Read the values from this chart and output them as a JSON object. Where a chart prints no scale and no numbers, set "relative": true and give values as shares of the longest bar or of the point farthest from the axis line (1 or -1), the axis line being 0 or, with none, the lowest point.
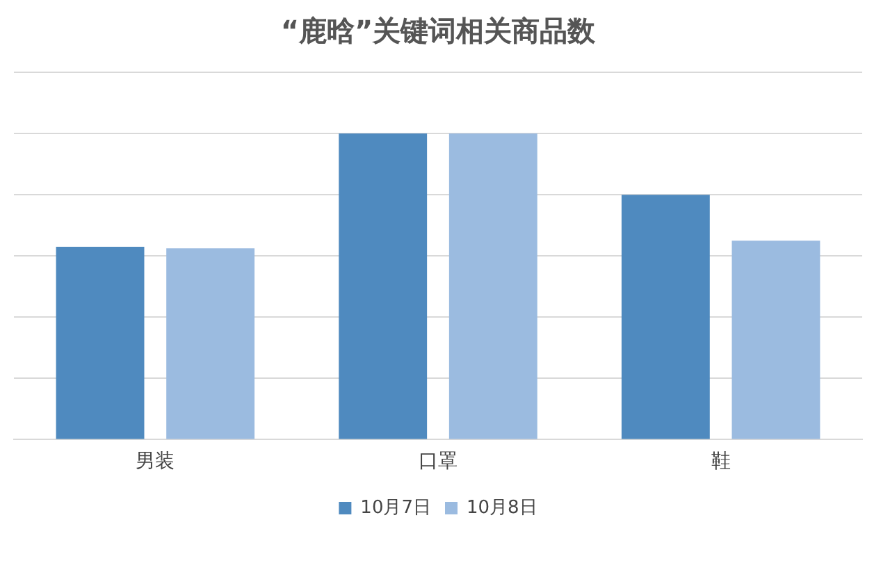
{
  "chart_data": {
    "type": "bar",
    "title": "“鹿晗”关键词相关商品数",
    "relative": true,
    "categories": [
      "男装",
      "口罩",
      "鞋"
    ],
    "series": [
      {
        "name": "10月7日",
        "color": "#4f8abf",
        "values": [
          0.63,
          1,
          0.8
        ]
      },
      {
        "name": "10月8日",
        "color": "#9bbbe0",
        "values": [
          0.625,
          1,
          0.65
        ]
      }
    ],
    "grid": "y",
    "legend": "bottom"
  }
}
